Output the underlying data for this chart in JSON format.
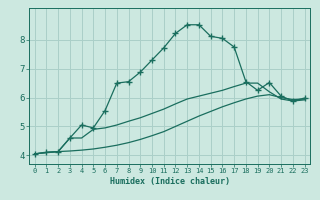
{
  "xlabel": "Humidex (Indice chaleur)",
  "bg_color": "#cce8e0",
  "grid_color": "#aacfc8",
  "line_color": "#1a6e5e",
  "xlim": [
    -0.5,
    23.5
  ],
  "ylim": [
    3.7,
    9.1
  ],
  "yticks": [
    4,
    5,
    6,
    7,
    8
  ],
  "xticks": [
    0,
    1,
    2,
    3,
    4,
    5,
    6,
    7,
    8,
    9,
    10,
    11,
    12,
    13,
    14,
    15,
    16,
    17,
    18,
    19,
    20,
    21,
    22,
    23
  ],
  "line1_x": [
    0,
    1,
    2,
    3,
    4,
    5,
    6,
    7,
    8,
    9,
    10,
    11,
    12,
    13,
    14,
    15,
    16,
    17,
    18,
    19,
    20,
    21,
    22,
    23
  ],
  "line1_y": [
    4.05,
    4.1,
    4.13,
    4.15,
    4.18,
    4.22,
    4.28,
    4.35,
    4.44,
    4.55,
    4.68,
    4.82,
    5.0,
    5.18,
    5.36,
    5.52,
    5.68,
    5.82,
    5.95,
    6.05,
    6.1,
    6.0,
    5.93,
    5.95
  ],
  "line2_x": [
    0,
    1,
    2,
    3,
    4,
    5,
    6,
    7,
    8,
    9,
    10,
    11,
    12,
    13,
    14,
    15,
    16,
    17,
    18,
    19,
    20,
    21,
    22,
    23
  ],
  "line2_y": [
    4.05,
    4.1,
    4.13,
    4.6,
    4.6,
    4.9,
    4.95,
    5.05,
    5.18,
    5.3,
    5.45,
    5.6,
    5.78,
    5.95,
    6.05,
    6.15,
    6.25,
    6.38,
    6.5,
    6.5,
    6.2,
    5.95,
    5.88,
    5.92
  ],
  "line3_x": [
    0,
    1,
    2,
    3,
    4,
    5,
    6,
    7,
    8,
    9,
    10,
    11,
    12,
    13,
    14,
    15,
    16,
    17,
    18,
    19,
    20,
    21,
    22,
    23
  ],
  "line3_y": [
    4.05,
    4.1,
    4.13,
    4.6,
    5.05,
    4.95,
    5.55,
    6.5,
    6.55,
    6.88,
    7.3,
    7.72,
    8.22,
    8.52,
    8.52,
    8.12,
    8.05,
    7.75,
    6.55,
    6.25,
    6.52,
    6.05,
    5.88,
    5.98
  ]
}
